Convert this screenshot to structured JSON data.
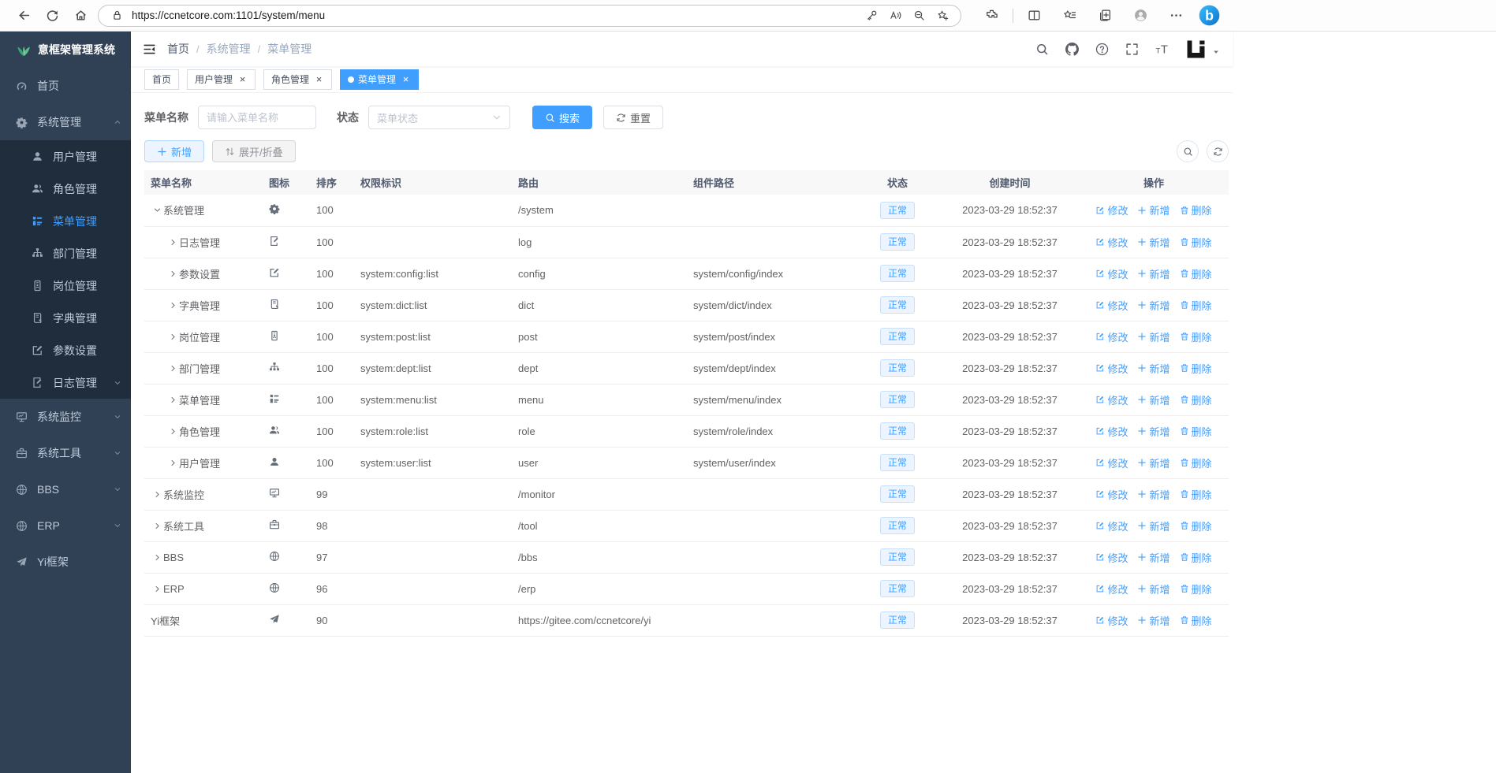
{
  "colors": {
    "accent": "#409eff",
    "sidebar_bg": "#304156",
    "submenu_bg": "#1f2d3d",
    "active_tab_bg": "#409eff",
    "badge_bg": "#ecf5ff",
    "badge_text": "#409eff"
  },
  "ui": {
    "close_glyph": "×"
  },
  "browser": {
    "url": "https://ccnetcore.com:1101/system/menu",
    "nav_icons": [
      "back-icon",
      "refresh-icon",
      "home-icon"
    ],
    "pill_left_icon": "lock-icon",
    "pill_right_icons": [
      "key-icon",
      "read-aloud-icon",
      "zoom-out-icon",
      "favorite-add-icon"
    ],
    "right_icons": [
      "extensions-icon",
      "split-screen-icon",
      "favorites-icon",
      "collections-icon",
      "profile-icon",
      "ellipsis-icon"
    ],
    "assistant_icon": "bing-icon"
  },
  "sidebar": {
    "logo": {
      "icon": "plant-logo-icon",
      "title": "意框架管理系统"
    },
    "items": [
      {
        "key": "home",
        "label": "首页",
        "icon": "dashboard-icon",
        "level": 0
      },
      {
        "key": "system-mgmt",
        "label": "系统管理",
        "icon": "gear-icon",
        "level": 0,
        "arrow": "up",
        "expanded": true
      },
      {
        "key": "user-mgmt",
        "label": "用户管理",
        "icon": "user-icon",
        "level": 1
      },
      {
        "key": "role-mgmt",
        "label": "角色管理",
        "icon": "users-icon",
        "level": 1
      },
      {
        "key": "menu-mgmt",
        "label": "菜单管理",
        "icon": "menu-tree-icon",
        "level": 1,
        "active": true
      },
      {
        "key": "dept-mgmt",
        "label": "部门管理",
        "icon": "dept-tree-icon",
        "level": 1
      },
      {
        "key": "post-mgmt",
        "label": "岗位管理",
        "icon": "post-badge-icon",
        "level": 1
      },
      {
        "key": "dict-mgmt",
        "label": "字典管理",
        "icon": "dict-book-icon",
        "level": 1
      },
      {
        "key": "config",
        "label": "参数设置",
        "icon": "edit-square-icon",
        "level": 1
      },
      {
        "key": "log-mgmt",
        "label": "日志管理",
        "icon": "log-doc-icon",
        "level": 1,
        "arrow": "down"
      },
      {
        "key": "monitor",
        "label": "系统监控",
        "icon": "monitor-icon",
        "level": 0,
        "arrow": "down"
      },
      {
        "key": "tool",
        "label": "系统工具",
        "icon": "toolbox-icon",
        "level": 0,
        "arrow": "down"
      },
      {
        "key": "bbs",
        "label": "BBS",
        "icon": "globe-icon",
        "level": 0,
        "arrow": "down"
      },
      {
        "key": "erp",
        "label": "ERP",
        "icon": "globe-icon",
        "level": 0,
        "arrow": "down"
      },
      {
        "key": "yi-frame",
        "label": "Yi框架",
        "icon": "paper-plane-icon",
        "level": 0
      }
    ]
  },
  "header": {
    "breadcrumb": [
      "首页",
      "系统管理",
      "菜单管理"
    ],
    "separator": "/",
    "icons": [
      "search-icon",
      "github-icon",
      "question-icon",
      "fullscreen-icon",
      "font-size-icon"
    ],
    "avatar_icon": "yi-logo-icon",
    "caret_icon": "caret-down-icon"
  },
  "tabs": [
    {
      "key": "home",
      "label": "首页",
      "closable": false,
      "active": false
    },
    {
      "key": "user-mgmt",
      "label": "用户管理",
      "closable": true,
      "active": false
    },
    {
      "key": "role-mgmt",
      "label": "角色管理",
      "closable": true,
      "active": false
    },
    {
      "key": "menu-mgmt",
      "label": "菜单管理",
      "closable": true,
      "active": true
    }
  ],
  "filter": {
    "name_label": "菜单名称",
    "name_placeholder": "请输入菜单名称",
    "status_label": "状态",
    "status_placeholder": "菜单状态",
    "search_label": "搜索",
    "reset_label": "重置"
  },
  "toolbar": {
    "add_label": "新增",
    "toggle_label": "展开/折叠",
    "right_icons": [
      "search-icon",
      "refresh-icon"
    ]
  },
  "table": {
    "columns": [
      "菜单名称",
      "图标",
      "排序",
      "权限标识",
      "路由",
      "组件路径",
      "状态",
      "创建时间",
      "操作"
    ],
    "actions": [
      {
        "key": "edit",
        "label": "修改",
        "icon": "edit-icon"
      },
      {
        "key": "add",
        "label": "新增",
        "icon": "plus-icon"
      },
      {
        "key": "delete",
        "label": "删除",
        "icon": "delete-icon"
      }
    ],
    "rows": [
      {
        "key": "system",
        "name": "系统管理",
        "icon": "gear-icon",
        "sort": "100",
        "perm": "",
        "route": "/system",
        "component": "",
        "status": "正常",
        "created": "2023-03-29 18:52:37",
        "level": 0,
        "expand": "down"
      },
      {
        "key": "log",
        "name": "日志管理",
        "icon": "log-doc-icon",
        "sort": "100",
        "perm": "",
        "route": "log",
        "component": "",
        "status": "正常",
        "created": "2023-03-29 18:52:37",
        "level": 1,
        "expand": "right"
      },
      {
        "key": "config",
        "name": "参数设置",
        "icon": "edit-square-icon",
        "sort": "100",
        "perm": "system:config:list",
        "route": "config",
        "component": "system/config/index",
        "status": "正常",
        "created": "2023-03-29 18:52:37",
        "level": 1,
        "expand": "right"
      },
      {
        "key": "dict",
        "name": "字典管理",
        "icon": "dict-book-icon",
        "sort": "100",
        "perm": "system:dict:list",
        "route": "dict",
        "component": "system/dict/index",
        "status": "正常",
        "created": "2023-03-29 18:52:37",
        "level": 1,
        "expand": "right"
      },
      {
        "key": "post",
        "name": "岗位管理",
        "icon": "post-badge-icon",
        "sort": "100",
        "perm": "system:post:list",
        "route": "post",
        "component": "system/post/index",
        "status": "正常",
        "created": "2023-03-29 18:52:37",
        "level": 1,
        "expand": "right"
      },
      {
        "key": "dept",
        "name": "部门管理",
        "icon": "dept-tree-icon",
        "sort": "100",
        "perm": "system:dept:list",
        "route": "dept",
        "component": "system/dept/index",
        "status": "正常",
        "created": "2023-03-29 18:52:37",
        "level": 1,
        "expand": "right"
      },
      {
        "key": "menu",
        "name": "菜单管理",
        "icon": "menu-tree-icon",
        "sort": "100",
        "perm": "system:menu:list",
        "route": "menu",
        "component": "system/menu/index",
        "status": "正常",
        "created": "2023-03-29 18:52:37",
        "level": 1,
        "expand": "right"
      },
      {
        "key": "role",
        "name": "角色管理",
        "icon": "users-icon",
        "sort": "100",
        "perm": "system:role:list",
        "route": "role",
        "component": "system/role/index",
        "status": "正常",
        "created": "2023-03-29 18:52:37",
        "level": 1,
        "expand": "right"
      },
      {
        "key": "user",
        "name": "用户管理",
        "icon": "user-icon",
        "sort": "100",
        "perm": "system:user:list",
        "route": "user",
        "component": "system/user/index",
        "status": "正常",
        "created": "2023-03-29 18:52:37",
        "level": 1,
        "expand": "right"
      },
      {
        "key": "monitor",
        "name": "系统监控",
        "icon": "monitor-icon",
        "sort": "99",
        "perm": "",
        "route": "/monitor",
        "component": "",
        "status": "正常",
        "created": "2023-03-29 18:52:37",
        "level": 0,
        "expand": "right"
      },
      {
        "key": "tool",
        "name": "系统工具",
        "icon": "toolbox-icon",
        "sort": "98",
        "perm": "",
        "route": "/tool",
        "component": "",
        "status": "正常",
        "created": "2023-03-29 18:52:37",
        "level": 0,
        "expand": "right"
      },
      {
        "key": "bbs",
        "name": "BBS",
        "icon": "globe-icon",
        "sort": "97",
        "perm": "",
        "route": "/bbs",
        "component": "",
        "status": "正常",
        "created": "2023-03-29 18:52:37",
        "level": 0,
        "expand": "right"
      },
      {
        "key": "erp",
        "name": "ERP",
        "icon": "globe-icon",
        "sort": "96",
        "perm": "",
        "route": "/erp",
        "component": "",
        "status": "正常",
        "created": "2023-03-29 18:52:37",
        "level": 0,
        "expand": "right"
      },
      {
        "key": "yi",
        "name": "Yi框架",
        "icon": "paper-plane-icon",
        "sort": "90",
        "perm": "",
        "route": "https://gitee.com/ccnetcore/yi",
        "component": "",
        "status": "正常",
        "created": "2023-03-29 18:52:37",
        "level": 0,
        "expand": "none"
      }
    ]
  }
}
